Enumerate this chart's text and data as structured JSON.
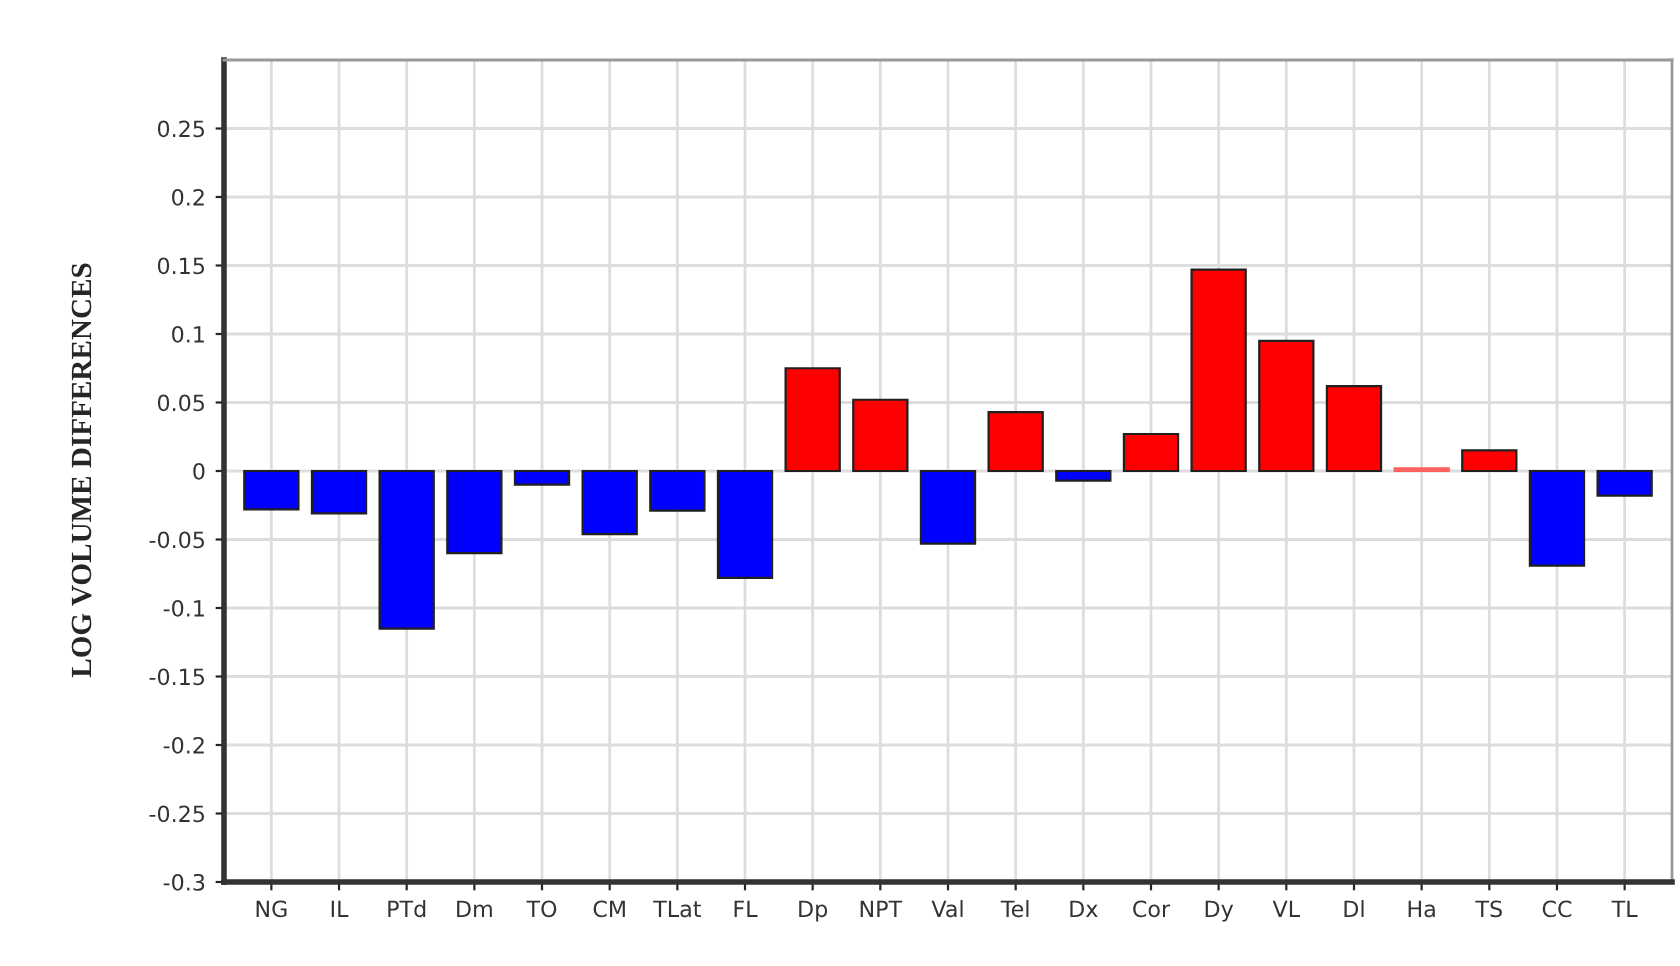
{
  "chart_data": {
    "type": "bar",
    "ylabel": "LOG VOLUME DIFFERENCES",
    "categories": [
      "NG",
      "IL",
      "PTd",
      "Dm",
      "TO",
      "CM",
      "TLat",
      "FL",
      "Dp",
      "NPT",
      "Val",
      "Tel",
      "Dx",
      "Cor",
      "Dy",
      "VL",
      "Dl",
      "Ha",
      "TS",
      "CC",
      "TL"
    ],
    "values": [
      -0.028,
      -0.031,
      -0.115,
      -0.06,
      -0.01,
      -0.046,
      -0.029,
      -0.078,
      0.075,
      0.052,
      -0.053,
      0.043,
      -0.007,
      0.027,
      0.147,
      0.095,
      0.062,
      0.002,
      0.015,
      -0.069,
      -0.018
    ],
    "colors": [
      "#0000ff",
      "#0000ff",
      "#0000ff",
      "#0000ff",
      "#0000ff",
      "#0000ff",
      "#0000ff",
      "#0000ff",
      "#ff0000",
      "#ff0000",
      "#0000ff",
      "#ff0000",
      "#0000ff",
      "#ff0000",
      "#ff0000",
      "#ff0000",
      "#ff0000",
      "#ff6060",
      "#ff0000",
      "#0000ff",
      "#0000ff"
    ],
    "ylim": [
      -0.3,
      0.3
    ],
    "yticks": [
      -0.3,
      -0.25,
      -0.2,
      -0.15,
      -0.1,
      -0.05,
      0,
      0.05,
      0.1,
      0.15,
      0.2,
      0.25
    ],
    "grid": true
  }
}
